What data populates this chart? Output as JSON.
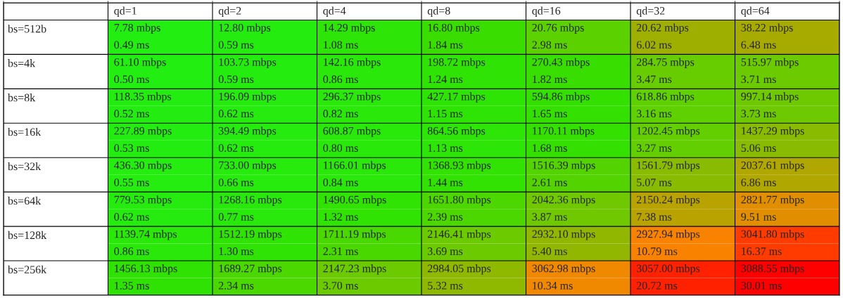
{
  "chart_data": {
    "type": "heatmap",
    "categories": [
      "qd=1",
      "qd=2",
      "qd=4",
      "qd=8",
      "qd=16",
      "qd=32",
      "qd=64"
    ],
    "y_categories": [
      "bs=512b",
      null,
      "bs=4k",
      null,
      "bs=8k",
      null,
      "bs=16k",
      null,
      "bs=32k",
      null,
      "bs=64k",
      null,
      "bs=128k",
      null,
      "bs=256k",
      null
    ],
    "cells": [
      [
        7.78,
        12.8,
        14.29,
        16.8,
        20.76,
        20.62,
        38.22
      ],
      [
        0.49,
        0.59,
        1.08,
        1.84,
        2.98,
        6.02,
        6.48
      ],
      [
        61.1,
        103.73,
        142.16,
        198.72,
        270.43,
        284.75,
        515.97
      ],
      [
        0.5,
        0.59,
        0.86,
        1.24,
        1.82,
        3.47,
        3.71
      ],
      [
        118.35,
        196.09,
        296.37,
        427.17,
        594.86,
        618.86,
        997.14
      ],
      [
        0.52,
        0.62,
        0.82,
        1.15,
        1.65,
        3.16,
        3.73
      ],
      [
        227.89,
        394.49,
        608.87,
        864.56,
        1170.11,
        1202.45,
        1437.29
      ],
      [
        0.53,
        0.62,
        0.8,
        1.13,
        1.68,
        3.27,
        5.06
      ],
      [
        436.3,
        733.0,
        1166.01,
        1368.93,
        1516.39,
        1561.79,
        2037.61
      ],
      [
        0.55,
        0.66,
        0.84,
        1.44,
        2.61,
        5.07,
        6.86
      ],
      [
        779.53,
        1268.16,
        1490.65,
        1651.8,
        2042.36,
        2150.24,
        2821.77
      ],
      [
        0.62,
        0.77,
        1.32,
        2.39,
        3.87,
        7.38,
        9.51
      ],
      [
        1139.74,
        1512.19,
        1711.19,
        2146.41,
        2932.1,
        2927.94,
        3041.8
      ],
      [
        0.86,
        1.3,
        2.31,
        3.69,
        5.4,
        10.79,
        16.37
      ],
      [
        1456.13,
        1689.27,
        2147.23,
        2984.05,
        3062.98,
        3057.0,
        3088.55
      ],
      [
        1.35,
        2.34,
        3.7,
        5.32,
        10.34,
        20.72,
        30.01
      ]
    ],
    "cell_labels": [
      [
        "7.78 mbps",
        "12.80 mbps",
        "14.29 mbps",
        "16.80 mbps",
        "20.76 mbps",
        "20.62 mbps",
        "38.22 mbps"
      ],
      [
        "0.49 ms",
        "0.59 ms",
        "1.08 ms",
        "1.84 ms",
        "2.98 ms",
        "6.02 ms",
        "6.48 ms"
      ],
      [
        "61.10 mbps",
        "103.73 mbps",
        "142.16 mbps",
        "198.72 mbps",
        "270.43 mbps",
        "284.75 mbps",
        "515.97 mbps"
      ],
      [
        "0.50 ms",
        "0.59 ms",
        "0.86 ms",
        "1.24 ms",
        "1.82 ms",
        "3.47 ms",
        "3.71 ms"
      ],
      [
        "118.35 mbps",
        "196.09 mbps",
        "296.37 mbps",
        "427.17 mbps",
        "594.86 mbps",
        "618.86 mbps",
        "997.14 mbps"
      ],
      [
        "0.52 ms",
        "0.62 ms",
        "0.82 ms",
        "1.15 ms",
        "1.65 ms",
        "3.16 ms",
        "3.73 ms"
      ],
      [
        "227.89 mbps",
        "394.49 mbps",
        "608.87 mbps",
        "864.56 mbps",
        "1170.11 mbps",
        "1202.45 mbps",
        "1437.29 mbps"
      ],
      [
        "0.53 ms",
        "0.62 ms",
        "0.80 ms",
        "1.13 ms",
        "1.68 ms",
        "3.27 ms",
        "5.06 ms"
      ],
      [
        "436.30 mbps",
        "733.00 mbps",
        "1166.01 mbps",
        "1368.93 mbps",
        "1516.39 mbps",
        "1561.79 mbps",
        "2037.61 mbps"
      ],
      [
        "0.55 ms",
        "0.66 ms",
        "0.84 ms",
        "1.44 ms",
        "2.61 ms",
        "5.07 ms",
        "6.86 ms"
      ],
      [
        "779.53 mbps",
        "1268.16 mbps",
        "1490.65 mbps",
        "1651.80 mbps",
        "2042.36 mbps",
        "2150.24 mbps",
        "2821.77 mbps"
      ],
      [
        "0.62 ms",
        "0.77 ms",
        "1.32 ms",
        "2.39 ms",
        "3.87 ms",
        "7.38 ms",
        "9.51 ms"
      ],
      [
        "1139.74 mbps",
        "1512.19 mbps",
        "1711.19 mbps",
        "2146.41 mbps",
        "2932.10 mbps",
        "2927.94 mbps",
        "3041.80 mbps"
      ],
      [
        "0.86 ms",
        "1.30 ms",
        "2.31 ms",
        "3.69 ms",
        "5.40 ms",
        "10.79 ms",
        "16.37 ms"
      ],
      [
        "1456.13 mbps",
        "1689.27 mbps",
        "2147.23 mbps",
        "2984.05 mbps",
        "3062.98 mbps",
        "3057.00 mbps",
        "3088.55 mbps"
      ],
      [
        "1.35 ms",
        "2.34 ms",
        "3.70 ms",
        "5.32 ms",
        "10.34 ms",
        "20.72 ms",
        "30.01 ms"
      ]
    ],
    "grid": true
  }
}
